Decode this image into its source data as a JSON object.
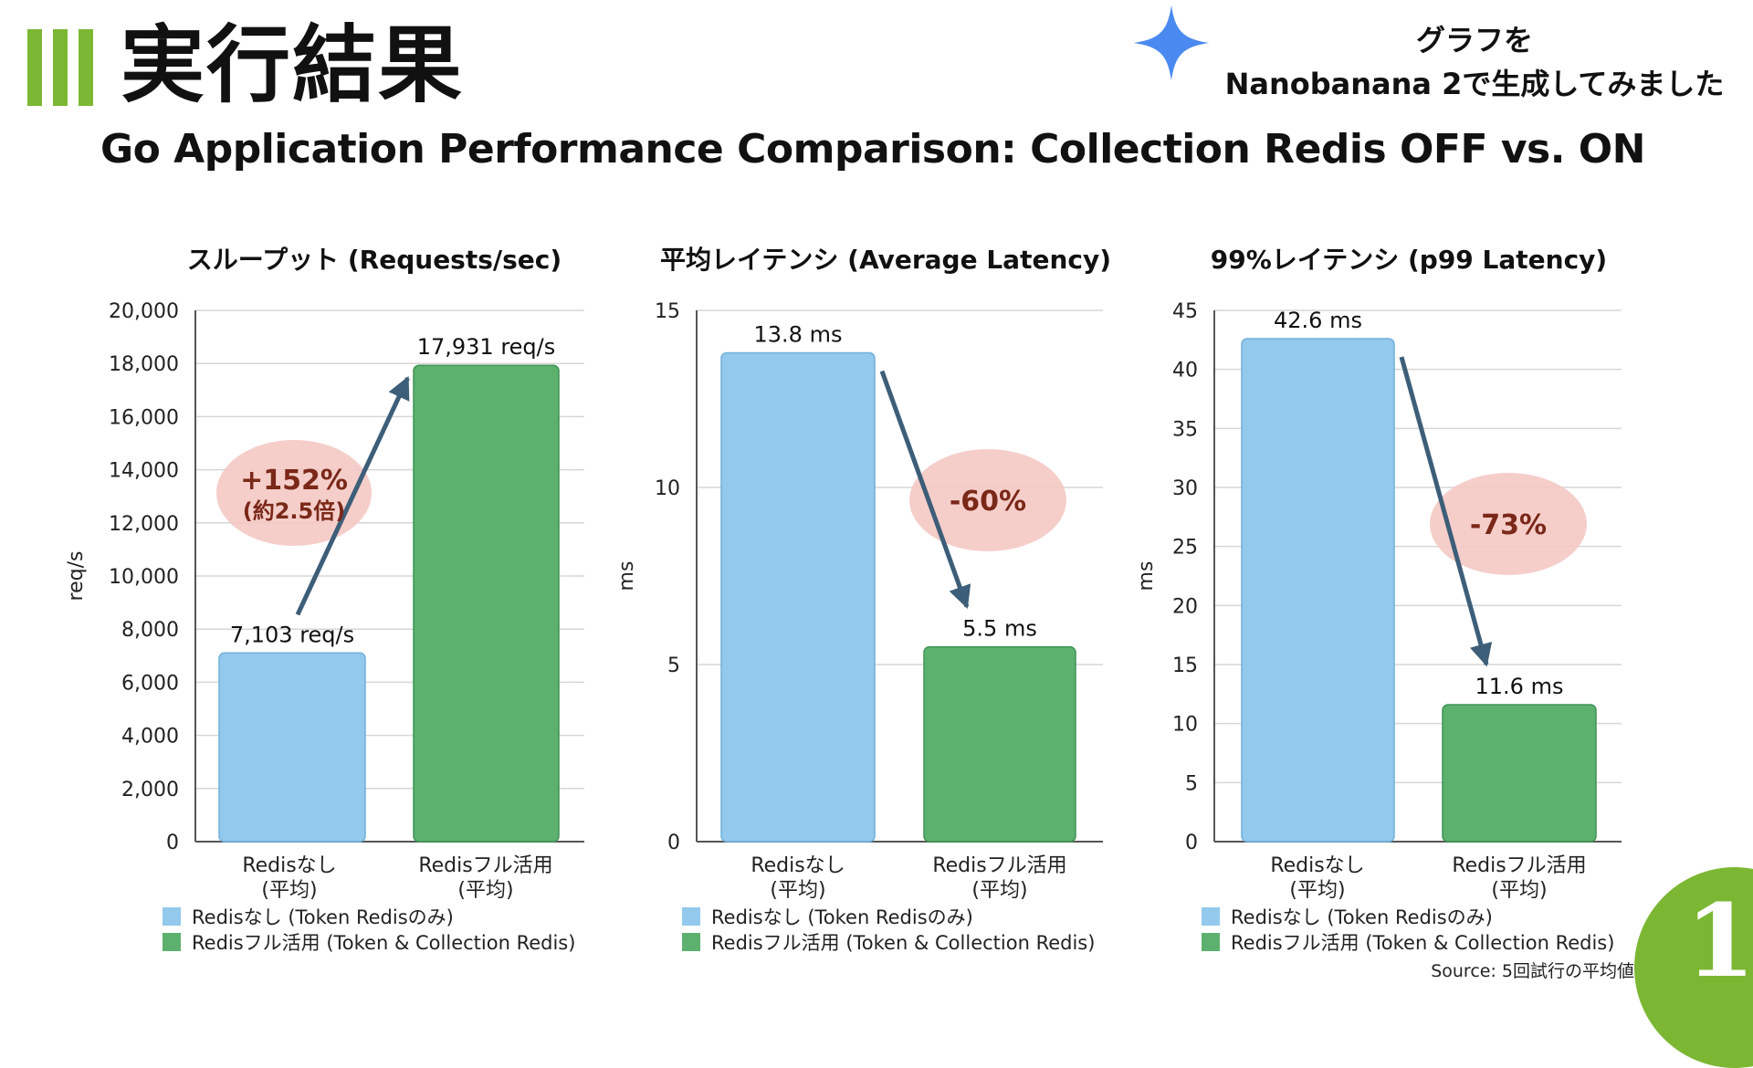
{
  "slide": {
    "title": "実行結果",
    "note_line1": "グラフを",
    "note_line2": "Nanobanana 2で生成してみました",
    "subtitle": "Go Application Performance Comparison: Collection Redis OFF vs. ON",
    "source": "Source: 5回試行の平均値",
    "page_number": "1"
  },
  "colors": {
    "accent_green": "#7cb733",
    "bar_blue": "#93c9ec",
    "bar_green": "#5db16f",
    "arrow": "#3d5e78",
    "badge": "#f4c9c4",
    "badge_text": "#7a2818"
  },
  "icons": {
    "sparkle": "sparkle-icon"
  },
  "chart_data": [
    {
      "type": "bar",
      "title": "スループット (Requests/sec)",
      "ylabel": "req/s",
      "ylim": [
        0,
        20000
      ],
      "yticks": [
        {
          "value": 0,
          "label": "0"
        },
        {
          "value": 2000,
          "label": "2,000"
        },
        {
          "value": 4000,
          "label": "4,000"
        },
        {
          "value": 6000,
          "label": "6,000"
        },
        {
          "value": 8000,
          "label": "8,000"
        },
        {
          "value": 10000,
          "label": "10,000"
        },
        {
          "value": 12000,
          "label": "12,000"
        },
        {
          "value": 14000,
          "label": "14,000"
        },
        {
          "value": 16000,
          "label": "16,000"
        },
        {
          "value": 18000,
          "label": "18,000"
        },
        {
          "value": 20000,
          "label": "20,000"
        }
      ],
      "categories": [
        {
          "line1": "Redisなし",
          "line2": "(平均)"
        },
        {
          "line1": "Redisフル活用",
          "line2": "(平均)"
        }
      ],
      "values": [
        7103,
        17931
      ],
      "bar_labels": [
        "7,103 req/s",
        "17,931 req/s"
      ],
      "change": {
        "text": "+152%",
        "subtext": "(約2.5倍)"
      },
      "legend": [
        "Redisなし (Token Redisのみ)",
        "Redisフル活用 (Token & Collection Redis)"
      ],
      "legend_position": "bottom-left",
      "grid": true
    },
    {
      "type": "bar",
      "title": "平均レイテンシ (Average Latency)",
      "ylabel": "ms",
      "ylim": [
        0,
        15
      ],
      "yticks": [
        {
          "value": 0,
          "label": "0"
        },
        {
          "value": 5,
          "label": "5"
        },
        {
          "value": 10,
          "label": "10"
        },
        {
          "value": 15,
          "label": "15"
        }
      ],
      "categories": [
        {
          "line1": "Redisなし",
          "line2": "(平均)"
        },
        {
          "line1": "Redisフル活用",
          "line2": "(平均)"
        }
      ],
      "values": [
        13.8,
        5.5
      ],
      "bar_labels": [
        "13.8 ms",
        "5.5 ms"
      ],
      "change": {
        "text": "-60%",
        "subtext": ""
      },
      "legend": [
        "Redisなし (Token Redisのみ)",
        "Redisフル活用 (Token & Collection Redis)"
      ],
      "legend_position": "bottom-left",
      "grid": true
    },
    {
      "type": "bar",
      "title": "99%レイテンシ (p99 Latency)",
      "ylabel": "ms",
      "ylim": [
        0,
        45
      ],
      "yticks": [
        {
          "value": 0,
          "label": "0"
        },
        {
          "value": 5,
          "label": "5"
        },
        {
          "value": 10,
          "label": "10"
        },
        {
          "value": 15,
          "label": "15"
        },
        {
          "value": 20,
          "label": "20"
        },
        {
          "value": 25,
          "label": "25"
        },
        {
          "value": 30,
          "label": "30"
        },
        {
          "value": 35,
          "label": "35"
        },
        {
          "value": 40,
          "label": "40"
        },
        {
          "value": 45,
          "label": "45"
        }
      ],
      "categories": [
        {
          "line1": "Redisなし",
          "line2": "(平均)"
        },
        {
          "line1": "Redisフル活用",
          "line2": "(平均)"
        }
      ],
      "values": [
        42.6,
        11.6
      ],
      "bar_labels": [
        "42.6 ms",
        "11.6 ms"
      ],
      "change": {
        "text": "-73%",
        "subtext": ""
      },
      "legend": [
        "Redisなし (Token Redisのみ)",
        "Redisフル活用 (Token & Collection Redis)"
      ],
      "legend_position": "bottom-left",
      "grid": true
    }
  ]
}
